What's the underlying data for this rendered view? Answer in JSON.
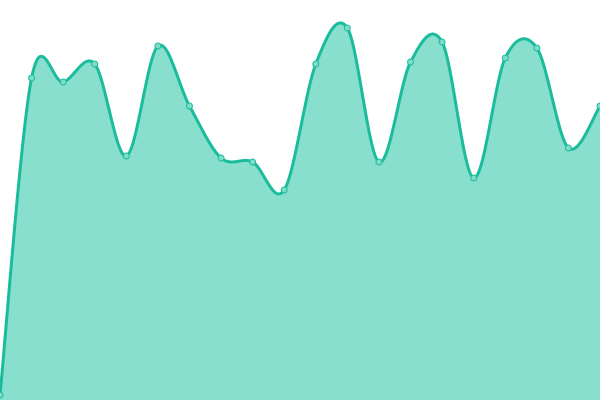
{
  "chart_data": {
    "type": "area",
    "title": "",
    "xlabel": "",
    "ylabel": "",
    "x": [
      0,
      1,
      2,
      3,
      4,
      5,
      6,
      7,
      8,
      9,
      10,
      11,
      12,
      13,
      14,
      15,
      16,
      17,
      18,
      19
    ],
    "values": [
      5,
      322,
      318,
      336,
      244,
      354,
      294,
      242,
      238,
      210,
      336,
      372,
      238,
      338,
      358,
      222,
      342,
      352,
      252,
      294
    ],
    "ylim": [
      0,
      400
    ],
    "grid": false,
    "axes_visible": false,
    "legend": "none",
    "curve": "smooth",
    "markers": true,
    "colors": {
      "line": "#1abc9c",
      "fill": "#89dfcd",
      "marker": "#7fdcc8"
    }
  }
}
